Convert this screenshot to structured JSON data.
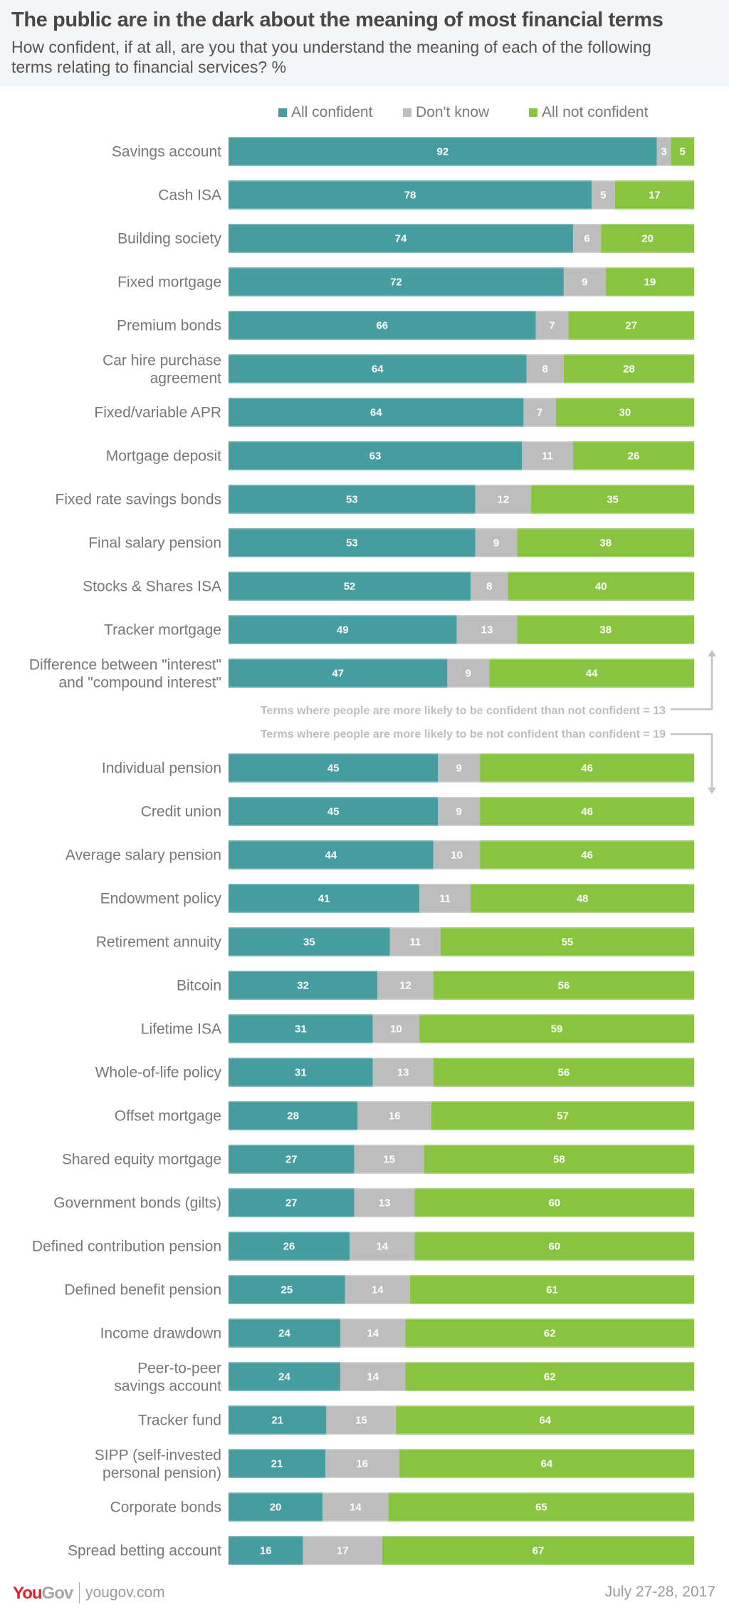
{
  "header": {
    "title": "The public are in the dark about the meaning of most financial terms",
    "subtitle": "How confident, if at all, are you that you understand the meaning of each of the following terms relating to financial services? %"
  },
  "legend": [
    {
      "label": "All confident",
      "color": "#459d9f"
    },
    {
      "label": "Don't know",
      "color": "#bdbdbd"
    },
    {
      "label": "All not confident",
      "color": "#88c43f"
    }
  ],
  "annotations": {
    "upper": "Terms where people are more likely to be confident than not confident = 13",
    "lower": "Terms where people are more likely to be not confident than confident = 19"
  },
  "footer": {
    "logo_you": "You",
    "logo_gov": "Gov",
    "site": "yougov.com",
    "date": "July 27-28, 2017"
  },
  "chart_data": {
    "type": "bar",
    "orientation": "horizontal",
    "stacked": true,
    "title": "The public are in the dark about the meaning of most financial terms",
    "subtitle": "How confident, if at all, are you that you understand the meaning of each of the following terms relating to financial services? %",
    "xlabel": "",
    "ylabel": "",
    "legend_position": "top",
    "grid": false,
    "groups": [
      {
        "note": "Terms where people are more likely to be confident than not confident = 13",
        "count": 13
      },
      {
        "note": "Terms where people are more likely to be not confident than confident = 19",
        "count": 19
      }
    ],
    "categories": [
      [
        "Savings account"
      ],
      [
        "Cash ISA"
      ],
      [
        "Building society"
      ],
      [
        "Fixed mortgage"
      ],
      [
        "Premium bonds"
      ],
      [
        "Car hire purchase",
        "agreement"
      ],
      [
        "Fixed/variable APR"
      ],
      [
        "Mortgage deposit"
      ],
      [
        "Fixed rate savings bonds"
      ],
      [
        "Final salary pension"
      ],
      [
        "Stocks & Shares ISA"
      ],
      [
        "Tracker mortgage"
      ],
      [
        "Difference between \"interest\"",
        "and \"compound interest\""
      ],
      [
        "Individual pension"
      ],
      [
        "Credit union"
      ],
      [
        "Average salary pension"
      ],
      [
        "Endowment policy"
      ],
      [
        "Retirement annuity"
      ],
      [
        "Bitcoin"
      ],
      [
        "Lifetime ISA"
      ],
      [
        "Whole-of-life policy"
      ],
      [
        "Offset mortgage"
      ],
      [
        "Shared equity mortgage"
      ],
      [
        "Government bonds (gilts)"
      ],
      [
        "Defined contribution pension"
      ],
      [
        "Defined benefit pension"
      ],
      [
        "Income drawdown"
      ],
      [
        "Peer-to-peer",
        "savings account"
      ],
      [
        "Tracker fund"
      ],
      [
        "SIPP (self-invested",
        "personal pension)"
      ],
      [
        "Corporate bonds"
      ],
      [
        "Spread betting account"
      ]
    ],
    "series": [
      {
        "name": "All confident",
        "color": "#459d9f",
        "values": [
          92,
          78,
          74,
          72,
          66,
          64,
          64,
          63,
          53,
          53,
          52,
          49,
          47,
          45,
          45,
          44,
          41,
          35,
          32,
          31,
          31,
          28,
          27,
          27,
          26,
          25,
          24,
          24,
          21,
          21,
          20,
          16
        ]
      },
      {
        "name": "Don't know",
        "color": "#bdbdbd",
        "values": [
          3,
          5,
          6,
          9,
          7,
          8,
          7,
          11,
          12,
          9,
          8,
          13,
          9,
          9,
          9,
          10,
          11,
          11,
          12,
          10,
          13,
          16,
          15,
          13,
          14,
          14,
          14,
          14,
          15,
          16,
          14,
          17
        ]
      },
      {
        "name": "All not confident",
        "color": "#88c43f",
        "values": [
          5,
          17,
          20,
          19,
          27,
          28,
          30,
          26,
          35,
          38,
          40,
          38,
          44,
          46,
          46,
          46,
          48,
          55,
          56,
          59,
          56,
          57,
          58,
          60,
          60,
          61,
          62,
          62,
          64,
          64,
          65,
          67
        ]
      }
    ],
    "xlim": [
      0,
      100
    ]
  }
}
